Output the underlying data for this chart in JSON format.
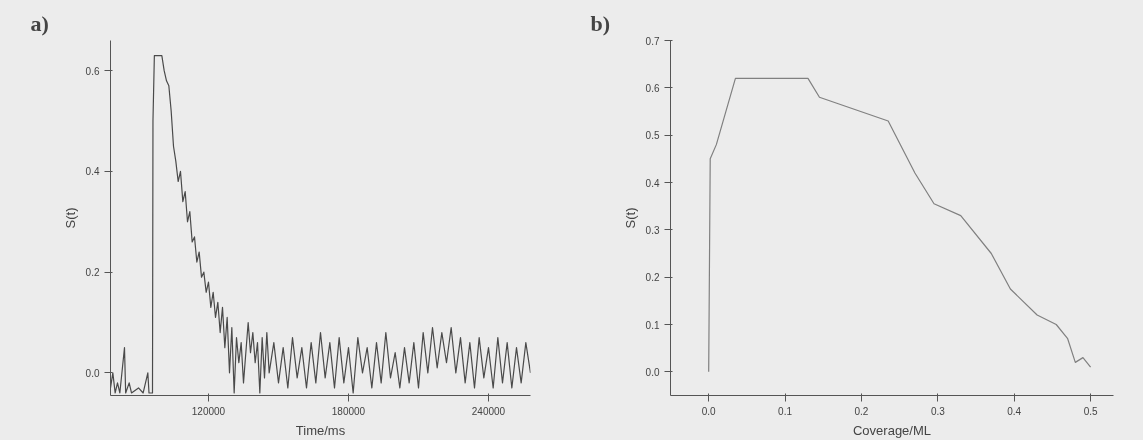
{
  "chart_data": [
    {
      "type": "line",
      "title": "a)",
      "xlabel": "Time/ms",
      "ylabel": "S(t)",
      "xlim": [
        78000,
        258000
      ],
      "ylim": [
        -0.045,
        0.66
      ],
      "xticks": [
        120000,
        180000,
        240000
      ],
      "yticks": [
        {
          "value": 0,
          "label": "0.0"
        },
        {
          "value": 0.2,
          "label": "0.2"
        },
        {
          "value": 0.4,
          "label": "0.4"
        },
        {
          "value": 0.6,
          "label": "0.6"
        }
      ],
      "grid": false,
      "series": [
        {
          "color": "#4a4a4a",
          "x": [
            78000,
            79000,
            80000,
            81000,
            82000,
            84000,
            84500,
            86000,
            87000,
            90000,
            92000,
            94000,
            94500,
            96000,
            96200,
            96800,
            100000,
            101000,
            102000,
            103000,
            104000,
            105000,
            106000,
            107000,
            108000,
            109000,
            110000,
            111000,
            112000,
            113000,
            114000,
            115000,
            116000,
            117000,
            118000,
            119000,
            120000,
            121000,
            122000,
            123000,
            124000,
            125000,
            126000,
            127000,
            128000,
            129000,
            130000,
            131000,
            132000,
            133000,
            134000,
            135000,
            137000,
            138000,
            139000,
            140000,
            141000,
            142000,
            143000,
            144000,
            145000,
            146000,
            148000,
            150000,
            152000,
            154000,
            156000,
            158000,
            160000,
            162000,
            164000,
            166000,
            168000,
            170000,
            172000,
            174000,
            176000,
            178000,
            180000,
            182000,
            184000,
            186000,
            188000,
            190000,
            192000,
            194000,
            196000,
            198000,
            200000,
            202000,
            204000,
            206000,
            208000,
            210000,
            212000,
            214000,
            216000,
            218000,
            220000,
            222000,
            224000,
            226000,
            228000,
            230000,
            232000,
            234000,
            236000,
            238000,
            240000,
            242000,
            244000,
            246000,
            248000,
            250000,
            252000,
            254000,
            256000,
            258000
          ],
          "values": [
            -0.03,
            0.0,
            -0.04,
            -0.02,
            -0.04,
            0.05,
            -0.04,
            -0.02,
            -0.04,
            -0.03,
            -0.04,
            0.0,
            -0.04,
            -0.04,
            0.5,
            0.63,
            0.63,
            0.6,
            0.58,
            0.57,
            0.52,
            0.45,
            0.42,
            0.38,
            0.4,
            0.34,
            0.36,
            0.3,
            0.32,
            0.26,
            0.27,
            0.22,
            0.24,
            0.19,
            0.2,
            0.16,
            0.18,
            0.13,
            0.16,
            0.11,
            0.14,
            0.08,
            0.13,
            0.05,
            0.11,
            0.0,
            0.09,
            -0.04,
            0.07,
            0.02,
            0.06,
            -0.02,
            0.1,
            0.04,
            0.08,
            0.02,
            0.06,
            -0.04,
            0.07,
            -0.01,
            0.08,
            0.0,
            0.06,
            -0.02,
            0.05,
            -0.03,
            0.07,
            -0.01,
            0.05,
            -0.03,
            0.06,
            -0.02,
            0.08,
            -0.01,
            0.06,
            -0.03,
            0.07,
            -0.02,
            0.05,
            -0.04,
            0.07,
            0.0,
            0.05,
            -0.03,
            0.06,
            -0.02,
            0.08,
            -0.01,
            0.04,
            -0.03,
            0.05,
            -0.02,
            0.06,
            -0.03,
            0.08,
            0.0,
            0.09,
            0.01,
            0.08,
            0.02,
            0.09,
            0.0,
            0.07,
            -0.02,
            0.06,
            -0.03,
            0.07,
            -0.01,
            0.05,
            -0.03,
            0.07,
            -0.02,
            0.06,
            -0.03,
            0.05,
            -0.02,
            0.06,
            0.0
          ]
        }
      ]
    },
    {
      "type": "line",
      "title": "b)",
      "xlabel": "Coverage/ML",
      "ylabel": "S(t)",
      "xlim": [
        -0.05,
        0.53
      ],
      "ylim": [
        -0.05,
        0.7
      ],
      "xticks": [
        {
          "value": 0,
          "label": "0.0"
        },
        {
          "value": 0.1,
          "label": "0.1"
        },
        {
          "value": 0.2,
          "label": "0.2"
        },
        {
          "value": 0.3,
          "label": "0.3"
        },
        {
          "value": 0.4,
          "label": "0.4"
        },
        {
          "value": 0.5,
          "label": "0.5"
        }
      ],
      "yticks": [
        {
          "value": 0,
          "label": "0.0"
        },
        {
          "value": 0.1,
          "label": "0.1"
        },
        {
          "value": 0.2,
          "label": "0.2"
        },
        {
          "value": 0.3,
          "label": "0.3"
        },
        {
          "value": 0.4,
          "label": "0.4"
        },
        {
          "value": 0.5,
          "label": "0.5"
        },
        {
          "value": 0.6,
          "label": "0.6"
        },
        {
          "value": 0.7,
          "label": "0.7"
        }
      ],
      "grid": false,
      "series": [
        {
          "color": "#808080",
          "x": [
            0,
            0.002,
            0.01,
            0.035,
            0.13,
            0.145,
            0.235,
            0.27,
            0.295,
            0.33,
            0.37,
            0.395,
            0.43,
            0.455,
            0.47,
            0.48,
            0.49,
            0.5
          ],
          "values": [
            0,
            0.45,
            0.48,
            0.62,
            0.62,
            0.58,
            0.53,
            0.42,
            0.355,
            0.33,
            0.25,
            0.175,
            0.12,
            0.1,
            0.07,
            0.02,
            0.03,
            0.01
          ]
        }
      ]
    }
  ]
}
